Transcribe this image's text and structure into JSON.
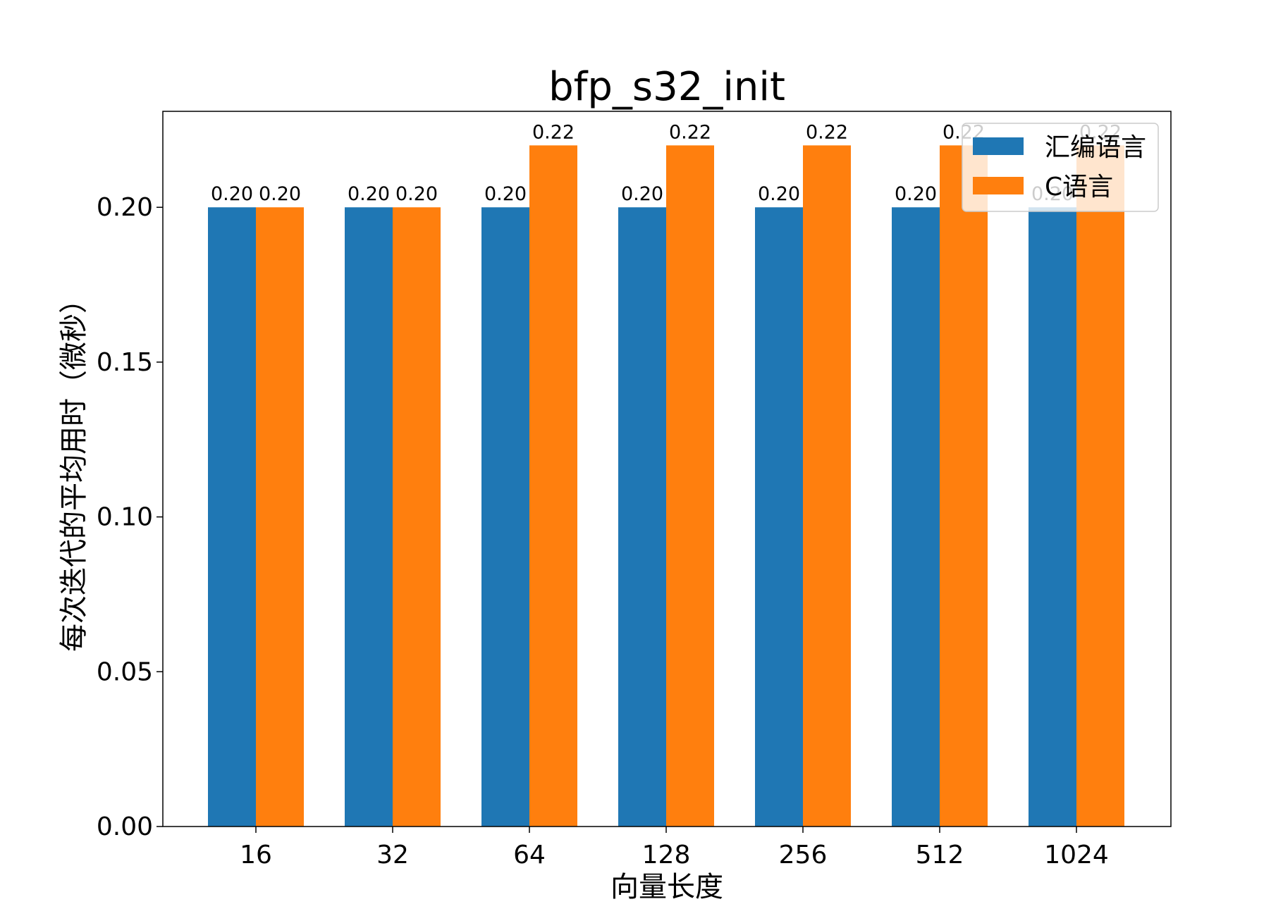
{
  "chart_data": {
    "type": "bar",
    "title": "bfp_s32_init",
    "xlabel": "向量长度",
    "ylabel": "每次迭代的平均用时（微秒）",
    "categories": [
      "16",
      "32",
      "64",
      "128",
      "256",
      "512",
      "1024"
    ],
    "series": [
      {
        "name": "汇编语言",
        "color": "#1f77b4",
        "values": [
          0.2,
          0.2,
          0.2,
          0.2,
          0.2,
          0.2,
          0.2
        ]
      },
      {
        "name": "C语言",
        "color": "#ff7f0e",
        "values": [
          0.2,
          0.2,
          0.22,
          0.22,
          0.22,
          0.22,
          0.22
        ]
      }
    ],
    "ylim": [
      0,
      0.231
    ],
    "yticks": [
      "0.00",
      "0.05",
      "0.10",
      "0.15",
      "0.20"
    ],
    "data_label_format": "2 decimals",
    "legend": "top-right",
    "grid": false
  }
}
